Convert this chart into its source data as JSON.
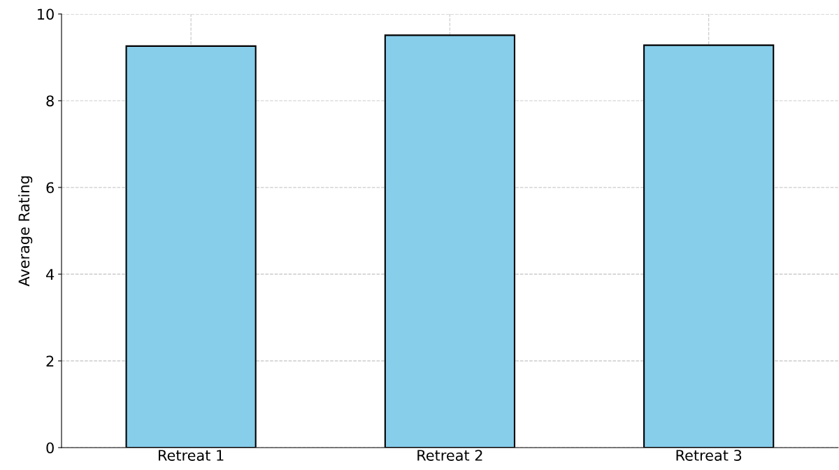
{
  "chart_data": {
    "type": "bar",
    "ylabel": "Average Rating",
    "categories": [
      "Retreat 1",
      "Retreat 2",
      "Retreat 3"
    ],
    "values": [
      9.26,
      9.51,
      9.28
    ],
    "color": "#87ceeb",
    "ylim": [
      0,
      10
    ],
    "yticks": [
      0,
      2,
      4,
      6,
      8,
      10
    ],
    "grid": true
  }
}
